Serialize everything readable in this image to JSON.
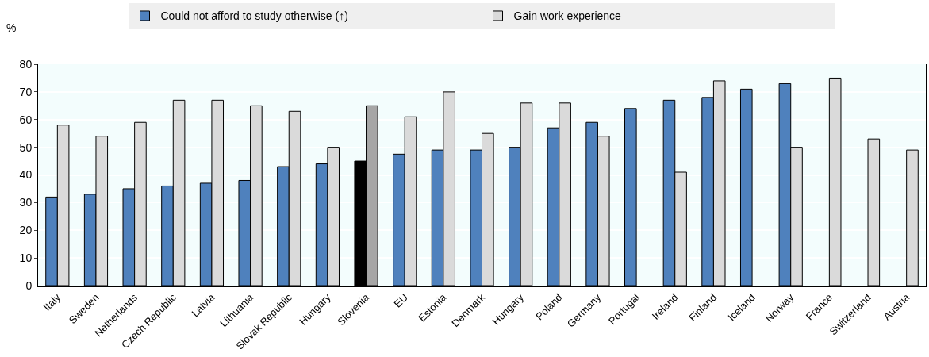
{
  "chart_data": {
    "type": "bar",
    "ylabel": "%",
    "categories": [
      "Italy",
      "Sweden",
      "Netherlands",
      "Czech Republic",
      "Latvia",
      "Lithuania",
      "Slovak Republic",
      "Hungary",
      "Slovenia",
      "EU",
      "Estonia",
      "Denmark",
      "Hungary",
      "Poland",
      "Germany",
      "Portugal",
      "Ireland",
      "Finland",
      "Iceland",
      "Norway",
      "France",
      "Switzerland",
      "Austria"
    ],
    "series": [
      {
        "name": "Could not afford to study otherwise (↑)",
        "colors": [
          "#4f81bd",
          "#4f81bd",
          "#4f81bd",
          "#4f81bd",
          "#4f81bd",
          "#4f81bd",
          "#4f81bd",
          "#4f81bd",
          "#000000",
          "#4f81bd",
          "#4f81bd",
          "#4f81bd",
          "#4f81bd",
          "#4f81bd",
          "#4f81bd",
          "#4f81bd",
          "#4f81bd",
          "#4f81bd",
          "#4f81bd",
          "#4f81bd",
          "#4f81bd",
          "#4f81bd",
          "#4f81bd"
        ],
        "values": [
          32,
          33,
          35,
          36,
          37,
          38,
          43,
          44,
          45,
          47.5,
          49,
          49,
          50,
          57,
          59,
          64,
          67,
          68,
          71,
          73,
          null,
          null,
          null
        ]
      },
      {
        "name": "Gain work experience",
        "colors": [
          "#dadada",
          "#dadada",
          "#dadada",
          "#dadada",
          "#dadada",
          "#dadada",
          "#dadada",
          "#dadada",
          "#a6a6a6",
          "#dadada",
          "#dadada",
          "#dadada",
          "#dadada",
          "#dadada",
          "#dadada",
          "#dadada",
          "#dadada",
          "#dadada",
          "#dadada",
          "#dadada",
          "#dadada",
          "#dadada",
          "#dadada"
        ],
        "values": [
          58,
          54,
          59,
          67,
          67,
          65,
          63,
          50,
          65,
          61,
          70,
          55,
          66,
          66,
          54,
          null,
          41,
          74,
          null,
          50,
          75,
          53,
          49
        ]
      }
    ],
    "ylim": [
      0,
      80
    ],
    "yticks": [
      0,
      10,
      20,
      30,
      40,
      50,
      60,
      70,
      80
    ],
    "grid": "y",
    "legend": "top"
  }
}
